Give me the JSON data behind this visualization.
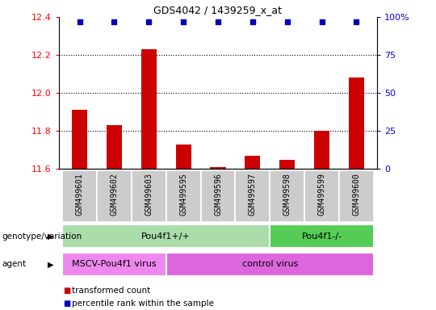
{
  "title": "GDS4042 / 1439259_x_at",
  "samples": [
    "GSM499601",
    "GSM499602",
    "GSM499603",
    "GSM499595",
    "GSM499596",
    "GSM499597",
    "GSM499598",
    "GSM499599",
    "GSM499600"
  ],
  "bar_values": [
    11.91,
    11.83,
    12.23,
    11.73,
    11.61,
    11.67,
    11.65,
    11.8,
    12.08
  ],
  "percentile_values": [
    97,
    97,
    97,
    97,
    97,
    97,
    97,
    97,
    97
  ],
  "ylim_left": [
    11.6,
    12.4
  ],
  "ylim_right": [
    0,
    100
  ],
  "yticks_left": [
    11.6,
    11.8,
    12.0,
    12.2,
    12.4
  ],
  "yticks_right": [
    0,
    25,
    50,
    75,
    100
  ],
  "ytick_right_labels": [
    "0",
    "25",
    "50",
    "75",
    "100%"
  ],
  "bar_color": "#cc0000",
  "dot_color": "#0000bb",
  "bar_width": 0.45,
  "genotype_groups": [
    {
      "label": "Pou4f1+/+",
      "start": 0,
      "end": 6,
      "color": "#aaddaa"
    },
    {
      "label": "Pou4f1-/-",
      "start": 6,
      "end": 9,
      "color": "#55cc55"
    }
  ],
  "agent_groups": [
    {
      "label": "MSCV-Pou4f1 virus",
      "start": 0,
      "end": 3,
      "color": "#ee88ee"
    },
    {
      "label": "control virus",
      "start": 3,
      "end": 9,
      "color": "#dd66dd"
    }
  ],
  "label_genotype": "genotype/variation",
  "label_agent": "agent",
  "legend_red": "transformed count",
  "legend_blue": "percentile rank within the sample",
  "hgrid_values": [
    11.8,
    12.0,
    12.2
  ]
}
